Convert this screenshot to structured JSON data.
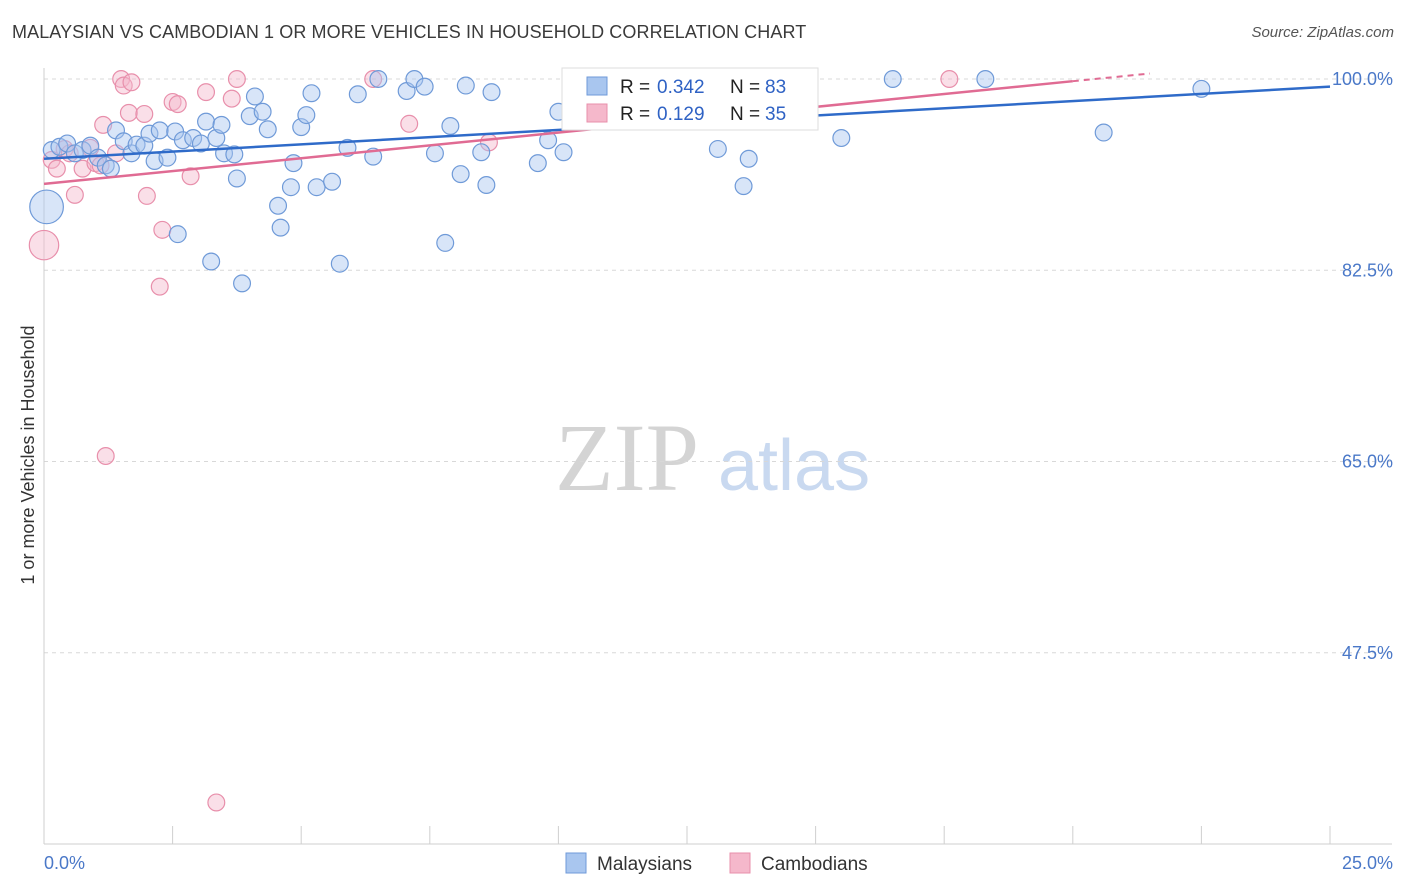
{
  "title": "MALAYSIAN VS CAMBODIAN 1 OR MORE VEHICLES IN HOUSEHOLD CORRELATION CHART",
  "source": "Source: ZipAtlas.com",
  "watermark": {
    "zip": "ZIP",
    "atlas": "atlas"
  },
  "colors": {
    "blue_fill": "#a9c6ef",
    "blue_stroke": "#6f9ad8",
    "blue_line": "#2f6bc9",
    "pink_fill": "#f5b8cb",
    "pink_stroke": "#e88fab",
    "pink_line": "#e06b93",
    "axis_text": "#4a78c8",
    "grid": "#d8d8d8"
  },
  "stats": [
    {
      "r_label": "R =",
      "r": "0.342",
      "n_label": "N =",
      "n": "83"
    },
    {
      "r_label": "R =",
      "r": "0.129",
      "n_label": "N =",
      "n": "35"
    }
  ],
  "chart_data": {
    "type": "scatter",
    "xlabel": "",
    "ylabel": "1 or more Vehicles in Household",
    "xlim": [
      0,
      25
    ],
    "ylim": [
      30,
      100
    ],
    "x_tick_labels": [
      "0.0%",
      "25.0%"
    ],
    "y_ticks": [
      47.5,
      65.0,
      82.5,
      100.0
    ],
    "y_tick_labels": [
      "47.5%",
      "65.0%",
      "82.5%",
      "100.0%"
    ],
    "legend": [
      "Malaysians",
      "Cambodians"
    ],
    "series": [
      {
        "name": "Malaysians",
        "trend": {
          "x": [
            0,
            25
          ],
          "y": [
            92.7,
            99.3
          ]
        },
        "points": [
          [
            0.05,
            88.3,
            16
          ],
          [
            0.15,
            93.5,
            8
          ],
          [
            0.3,
            93.8,
            8
          ],
          [
            0.45,
            94.1,
            8
          ],
          [
            0.6,
            93.2,
            8
          ],
          [
            0.75,
            93.5,
            8
          ],
          [
            0.9,
            93.9,
            8
          ],
          [
            1.05,
            92.8,
            8
          ],
          [
            1.2,
            92.1,
            8
          ],
          [
            1.3,
            91.8,
            8
          ],
          [
            1.4,
            95.3,
            8
          ],
          [
            1.55,
            94.3,
            8
          ],
          [
            1.7,
            93.2,
            8
          ],
          [
            1.8,
            94.0,
            8
          ],
          [
            1.95,
            93.9,
            8
          ],
          [
            2.05,
            95.0,
            8
          ],
          [
            2.15,
            92.5,
            8
          ],
          [
            2.25,
            95.3,
            8
          ],
          [
            2.4,
            92.8,
            8
          ],
          [
            2.55,
            95.2,
            8
          ],
          [
            2.6,
            85.8,
            8
          ],
          [
            2.7,
            94.4,
            8
          ],
          [
            2.9,
            94.6,
            8
          ],
          [
            3.05,
            94.1,
            8
          ],
          [
            3.15,
            96.1,
            8
          ],
          [
            3.25,
            83.3,
            8
          ],
          [
            3.35,
            94.6,
            8
          ],
          [
            3.45,
            95.8,
            8
          ],
          [
            3.5,
            93.2,
            8
          ],
          [
            3.7,
            93.1,
            8
          ],
          [
            3.75,
            90.9,
            8
          ],
          [
            3.85,
            81.3,
            8
          ],
          [
            4.0,
            96.6,
            8
          ],
          [
            4.1,
            98.4,
            8
          ],
          [
            4.25,
            97.0,
            8
          ],
          [
            4.35,
            95.4,
            8
          ],
          [
            4.55,
            88.4,
            8
          ],
          [
            4.6,
            86.4,
            8
          ],
          [
            4.8,
            90.1,
            8
          ],
          [
            4.85,
            92.3,
            8
          ],
          [
            5.0,
            95.6,
            8
          ],
          [
            5.1,
            96.7,
            8
          ],
          [
            5.2,
            98.7,
            8
          ],
          [
            5.3,
            90.1,
            8
          ],
          [
            5.6,
            90.6,
            8
          ],
          [
            5.75,
            83.1,
            8
          ],
          [
            5.9,
            93.7,
            8
          ],
          [
            6.1,
            98.6,
            8
          ],
          [
            6.4,
            92.9,
            8
          ],
          [
            6.5,
            100.0,
            8
          ],
          [
            7.05,
            98.9,
            8
          ],
          [
            7.2,
            100.0,
            8
          ],
          [
            7.4,
            99.3,
            8
          ],
          [
            7.6,
            93.2,
            8
          ],
          [
            7.9,
            95.7,
            8
          ],
          [
            7.8,
            85.0,
            8
          ],
          [
            8.1,
            91.3,
            8
          ],
          [
            8.2,
            99.4,
            8
          ],
          [
            8.5,
            93.3,
            8
          ],
          [
            8.6,
            90.3,
            8
          ],
          [
            8.7,
            98.8,
            8
          ],
          [
            9.6,
            92.3,
            8
          ],
          [
            9.8,
            94.4,
            8
          ],
          [
            10.0,
            97.0,
            8
          ],
          [
            10.1,
            93.3,
            8
          ],
          [
            11.1,
            100.0,
            8
          ],
          [
            11.4,
            100.0,
            8
          ],
          [
            13.1,
            93.6,
            8
          ],
          [
            13.6,
            90.2,
            8
          ],
          [
            13.7,
            92.7,
            8
          ],
          [
            14.0,
            100.0,
            8
          ],
          [
            14.2,
            98.7,
            8
          ],
          [
            15.5,
            94.6,
            8
          ],
          [
            16.5,
            100.0,
            8
          ],
          [
            18.3,
            100.0,
            8
          ],
          [
            20.6,
            95.1,
            8
          ],
          [
            22.5,
            99.1,
            8
          ]
        ]
      },
      {
        "name": "Cambodians",
        "trend": {
          "x": [
            0,
            20
          ],
          "y": [
            90.4,
            99.8
          ]
        },
        "trend_dashed": {
          "x": [
            20,
            21.5
          ],
          "y": [
            99.8,
            100.5
          ]
        },
        "points": [
          [
            0.0,
            84.8,
            14
          ],
          [
            0.15,
            92.6,
            8
          ],
          [
            0.25,
            91.8,
            8
          ],
          [
            0.4,
            93.6,
            8
          ],
          [
            0.5,
            93.2,
            8
          ],
          [
            0.6,
            89.4,
            8
          ],
          [
            0.75,
            91.8,
            8
          ],
          [
            0.9,
            93.7,
            8
          ],
          [
            1.0,
            92.3,
            8
          ],
          [
            1.1,
            92.1,
            8
          ],
          [
            1.15,
            95.8,
            8
          ],
          [
            1.2,
            65.5,
            8
          ],
          [
            1.4,
            93.2,
            8
          ],
          [
            1.5,
            100.0,
            8
          ],
          [
            1.55,
            99.4,
            8
          ],
          [
            1.65,
            96.9,
            8
          ],
          [
            1.7,
            99.7,
            8
          ],
          [
            1.95,
            96.8,
            8
          ],
          [
            2.0,
            89.3,
            8
          ],
          [
            2.25,
            81.0,
            8
          ],
          [
            2.3,
            86.2,
            8
          ],
          [
            2.5,
            97.9,
            8
          ],
          [
            2.6,
            97.7,
            8
          ],
          [
            2.85,
            91.1,
            8
          ],
          [
            3.15,
            98.8,
            8
          ],
          [
            3.35,
            33.8,
            8
          ],
          [
            3.65,
            98.2,
            8
          ],
          [
            3.75,
            100.0,
            8
          ],
          [
            6.4,
            100.0,
            8
          ],
          [
            7.1,
            95.9,
            8
          ],
          [
            8.65,
            94.2,
            8
          ],
          [
            17.6,
            100.0,
            8
          ]
        ]
      }
    ]
  }
}
